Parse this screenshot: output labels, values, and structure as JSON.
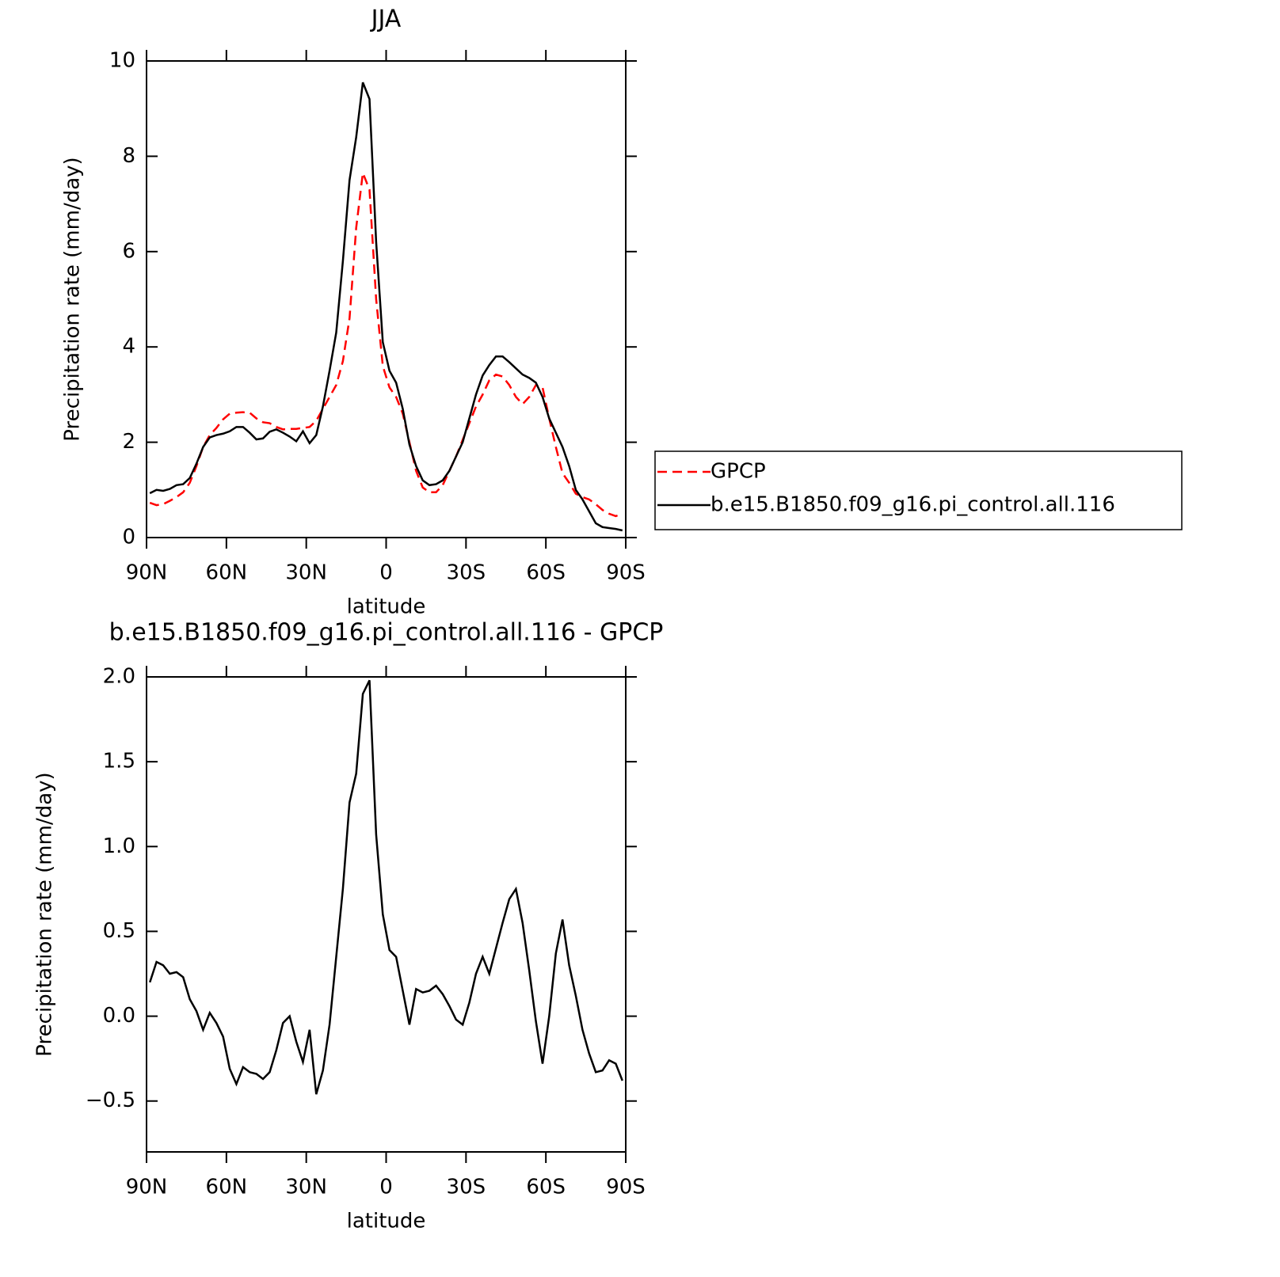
{
  "chart_data": [
    {
      "type": "line",
      "title": "JJA",
      "xlabel": "latitude",
      "ylabel": "Precipitation rate (mm/day)",
      "x": [
        88.75,
        86.25,
        83.75,
        81.25,
        78.75,
        76.25,
        73.75,
        71.25,
        68.75,
        66.25,
        63.75,
        61.25,
        58.75,
        56.25,
        53.75,
        51.25,
        48.75,
        46.25,
        43.75,
        41.25,
        38.75,
        36.25,
        33.75,
        31.25,
        28.75,
        26.25,
        23.75,
        21.25,
        18.75,
        16.25,
        13.75,
        11.25,
        8.75,
        6.25,
        3.75,
        1.25,
        -1.25,
        -3.75,
        -6.25,
        -8.75,
        -11.25,
        -13.75,
        -16.25,
        -18.75,
        -21.25,
        -23.75,
        -26.25,
        -28.75,
        -31.25,
        -33.75,
        -36.25,
        -38.75,
        -41.25,
        -43.75,
        -46.25,
        -48.75,
        -51.25,
        -53.75,
        -56.25,
        -58.75,
        -61.25,
        -63.75,
        -66.25,
        -68.75,
        -71.25,
        -73.75,
        -76.25,
        -78.75,
        -81.25,
        -83.75,
        -86.25,
        -88.75
      ],
      "series": [
        {
          "name": "GPCP",
          "color": "#ff0000",
          "dashed": true,
          "values": [
            0.73,
            0.68,
            0.7,
            0.77,
            0.85,
            0.95,
            1.15,
            1.5,
            1.9,
            2.15,
            2.3,
            2.48,
            2.6,
            2.62,
            2.63,
            2.62,
            2.5,
            2.42,
            2.4,
            2.32,
            2.27,
            2.28,
            2.28,
            2.3,
            2.32,
            2.45,
            2.7,
            2.95,
            3.2,
            3.7,
            4.6,
            6.5,
            7.65,
            7.3,
            5.0,
            3.6,
            3.15,
            2.95,
            2.6,
            2.0,
            1.4,
            1.05,
            0.95,
            0.95,
            1.1,
            1.4,
            1.7,
            2.05,
            2.4,
            2.75,
            3.0,
            3.3,
            3.42,
            3.38,
            3.2,
            2.95,
            2.8,
            2.95,
            3.2,
            3.15,
            2.5,
            1.9,
            1.35,
            1.15,
            0.92,
            0.85,
            0.8,
            0.7,
            0.58,
            0.5,
            0.45,
            0.5
          ]
        },
        {
          "name": "b.e15.B1850.f09_g16.pi_control.all.116",
          "color": "#000000",
          "dashed": false,
          "values": [
            0.93,
            1.0,
            0.98,
            1.02,
            1.1,
            1.12,
            1.25,
            1.55,
            1.9,
            2.1,
            2.15,
            2.18,
            2.23,
            2.32,
            2.32,
            2.2,
            2.06,
            2.08,
            2.22,
            2.27,
            2.2,
            2.12,
            2.02,
            2.23,
            1.98,
            2.15,
            2.75,
            3.5,
            4.3,
            5.8,
            7.5,
            8.4,
            9.55,
            9.2,
            6.2,
            4.1,
            3.5,
            3.25,
            2.7,
            1.95,
            1.5,
            1.2,
            1.1,
            1.12,
            1.2,
            1.4,
            1.7,
            2.0,
            2.5,
            3.0,
            3.4,
            3.62,
            3.8,
            3.8,
            3.68,
            3.55,
            3.42,
            3.35,
            3.25,
            2.95,
            2.5,
            2.2,
            1.9,
            1.5,
            1.0,
            0.8,
            0.55,
            0.3,
            0.22,
            0.2,
            0.18,
            0.15
          ]
        }
      ],
      "xlim": [
        90,
        -90
      ],
      "xticks": [
        {
          "value": 90,
          "label": "90N"
        },
        {
          "value": 60,
          "label": "60N"
        },
        {
          "value": 30,
          "label": "30N"
        },
        0,
        {
          "value": -30,
          "label": "30S"
        },
        {
          "value": -60,
          "label": "60S"
        },
        {
          "value": -90,
          "label": "90S"
        }
      ],
      "ylim": [
        0,
        10
      ],
      "yticks": [
        0,
        2,
        4,
        6,
        8,
        10
      ]
    },
    {
      "type": "line",
      "title": "b.e15.B1850.f09_g16.pi_control.all.116 - GPCP",
      "xlabel": "latitude",
      "ylabel": "Precipitation rate (mm/day)",
      "x": [
        88.75,
        86.25,
        83.75,
        81.25,
        78.75,
        76.25,
        73.75,
        71.25,
        68.75,
        66.25,
        63.75,
        61.25,
        58.75,
        56.25,
        53.75,
        51.25,
        48.75,
        46.25,
        43.75,
        41.25,
        38.75,
        36.25,
        33.75,
        31.25,
        28.75,
        26.25,
        23.75,
        21.25,
        18.75,
        16.25,
        13.75,
        11.25,
        8.75,
        6.25,
        3.75,
        1.25,
        -1.25,
        -3.75,
        -6.25,
        -8.75,
        -11.25,
        -13.75,
        -16.25,
        -18.75,
        -21.25,
        -23.75,
        -26.25,
        -28.75,
        -31.25,
        -33.75,
        -36.25,
        -38.75,
        -41.25,
        -43.75,
        -46.25,
        -48.75,
        -51.25,
        -53.75,
        -56.25,
        -58.75,
        -61.25,
        -63.75,
        -66.25,
        -68.75,
        -71.25,
        -73.75,
        -76.25,
        -78.75,
        -81.25,
        -83.75,
        -86.25,
        -88.75
      ],
      "color": "#000000",
      "values": [
        0.2,
        0.32,
        0.3,
        0.25,
        0.26,
        0.23,
        0.1,
        0.03,
        -0.08,
        0.02,
        -0.04,
        -0.12,
        -0.31,
        -0.4,
        -0.3,
        -0.33,
        -0.34,
        -0.37,
        -0.33,
        -0.2,
        -0.04,
        0.0,
        -0.15,
        -0.27,
        -0.08,
        -0.46,
        -0.32,
        -0.05,
        0.35,
        0.75,
        1.26,
        1.43,
        1.9,
        1.98,
        1.07,
        0.6,
        0.39,
        0.35,
        0.15,
        -0.05,
        0.16,
        0.14,
        0.15,
        0.18,
        0.13,
        0.06,
        -0.02,
        -0.05,
        0.08,
        0.25,
        0.35,
        0.25,
        0.4,
        0.55,
        0.69,
        0.75,
        0.55,
        0.27,
        -0.03,
        -0.28,
        0.0,
        0.37,
        0.57,
        0.3,
        0.12,
        -0.08,
        -0.22,
        -0.33,
        -0.32,
        -0.26,
        -0.28,
        -0.38
      ],
      "xlim": [
        90,
        -90
      ],
      "xticks": [
        {
          "value": 90,
          "label": "90N"
        },
        {
          "value": 60,
          "label": "60N"
        },
        {
          "value": 30,
          "label": "30N"
        },
        0,
        {
          "value": -30,
          "label": "30S"
        },
        {
          "value": -60,
          "label": "60S"
        },
        {
          "value": -90,
          "label": "90S"
        }
      ],
      "ylim": [
        -0.8,
        2.0
      ],
      "yticks": [
        {
          "value": -0.5,
          "label": "−0.5"
        },
        {
          "value": 0,
          "label": "0.0"
        },
        {
          "value": 0.5,
          "label": "0.5"
        },
        {
          "value": 1.0,
          "label": "1.0"
        },
        {
          "value": 1.5,
          "label": "1.5"
        },
        {
          "value": 2.0,
          "label": "2.0"
        }
      ]
    }
  ]
}
